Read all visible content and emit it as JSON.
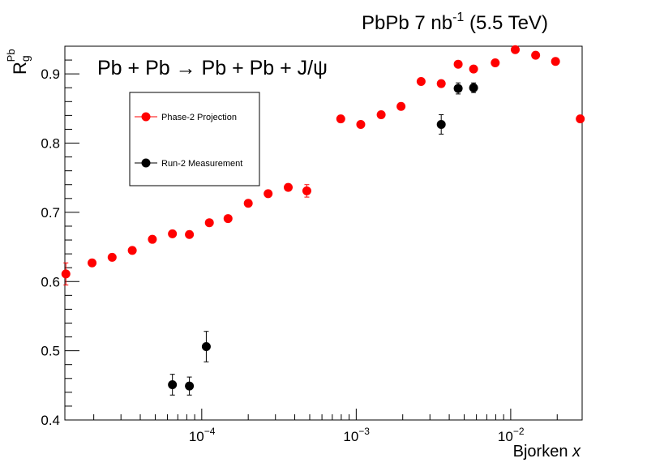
{
  "chart_data": {
    "type": "scatter",
    "title": "PbPb 7 nb",
    "title_sup": "-1",
    "title_tail": " (5.5 TeV)",
    "annotation": "Pb + Pb → Pb + Pb + J/ψ",
    "xlabel": "Bjorken",
    "xlabel_var": "x",
    "ylabel": "R",
    "ylabel_sup": "Pb",
    "ylabel_sub": "g",
    "xscale": "log",
    "xlim": [
      1.3e-05,
      0.029
    ],
    "ylim": [
      0.4,
      0.94
    ],
    "legend_position": "upper-left",
    "y_ticks": [
      "0.4",
      "0.5",
      "0.6",
      "0.7",
      "0.8",
      "0.9"
    ],
    "x_ticks": [
      {
        "base": "10",
        "exp": "−4",
        "value": 0.0001
      },
      {
        "base": "10",
        "exp": "−3",
        "value": 0.001
      },
      {
        "base": "10",
        "exp": "−2",
        "value": 0.01
      }
    ],
    "series": [
      {
        "name": "Phase-2 Projection",
        "color": "#ff0000",
        "points": [
          {
            "x": 1.32e-05,
            "y": 0.611,
            "err": 0.016
          },
          {
            "x": 1.95e-05,
            "y": 0.627,
            "err": 0.004
          },
          {
            "x": 2.63e-05,
            "y": 0.635,
            "err": 0.004
          },
          {
            "x": 3.55e-05,
            "y": 0.645,
            "err": 0.004
          },
          {
            "x": 4.79e-05,
            "y": 0.661,
            "err": 0.004
          },
          {
            "x": 6.46e-05,
            "y": 0.669,
            "err": 0.004
          },
          {
            "x": 8.32e-05,
            "y": 0.668,
            "err": 0.004
          },
          {
            "x": 0.000112,
            "y": 0.685,
            "err": 0.004
          },
          {
            "x": 0.000148,
            "y": 0.691,
            "err": 0.004
          },
          {
            "x": 0.0002,
            "y": 0.713,
            "err": 0.004
          },
          {
            "x": 0.000269,
            "y": 0.727,
            "err": 0.004
          },
          {
            "x": 0.000363,
            "y": 0.736,
            "err": 0.005
          },
          {
            "x": 0.000479,
            "y": 0.731,
            "err": 0.009
          },
          {
            "x": 0.000794,
            "y": 0.835,
            "err": 0.005
          },
          {
            "x": 0.00107,
            "y": 0.827,
            "err": 0.004
          },
          {
            "x": 0.00145,
            "y": 0.841,
            "err": 0.004
          },
          {
            "x": 0.00195,
            "y": 0.853,
            "err": 0.004
          },
          {
            "x": 0.00263,
            "y": 0.889,
            "err": 0.004
          },
          {
            "x": 0.00355,
            "y": 0.886,
            "err": 0.004
          },
          {
            "x": 0.00457,
            "y": 0.914,
            "err": 0.004
          },
          {
            "x": 0.00575,
            "y": 0.907,
            "err": 0.004
          },
          {
            "x": 0.00794,
            "y": 0.916,
            "err": 0.004
          },
          {
            "x": 0.0107,
            "y": 0.935,
            "err": 0.004
          },
          {
            "x": 0.0145,
            "y": 0.927,
            "err": 0.004
          },
          {
            "x": 0.0195,
            "y": 0.918,
            "err": 0.004
          },
          {
            "x": 0.0282,
            "y": 0.835,
            "err": 0.004
          }
        ]
      },
      {
        "name": "Run-2 Measurement",
        "color": "#000000",
        "points": [
          {
            "x": 6.46e-05,
            "y": 0.451,
            "err": 0.015
          },
          {
            "x": 8.32e-05,
            "y": 0.449,
            "err": 0.013
          },
          {
            "x": 0.000107,
            "y": 0.506,
            "err": 0.022
          },
          {
            "x": 0.00355,
            "y": 0.827,
            "err": 0.014
          },
          {
            "x": 0.00457,
            "y": 0.879,
            "err": 0.008
          },
          {
            "x": 0.00575,
            "y": 0.88,
            "err": 0.007
          }
        ]
      }
    ]
  }
}
